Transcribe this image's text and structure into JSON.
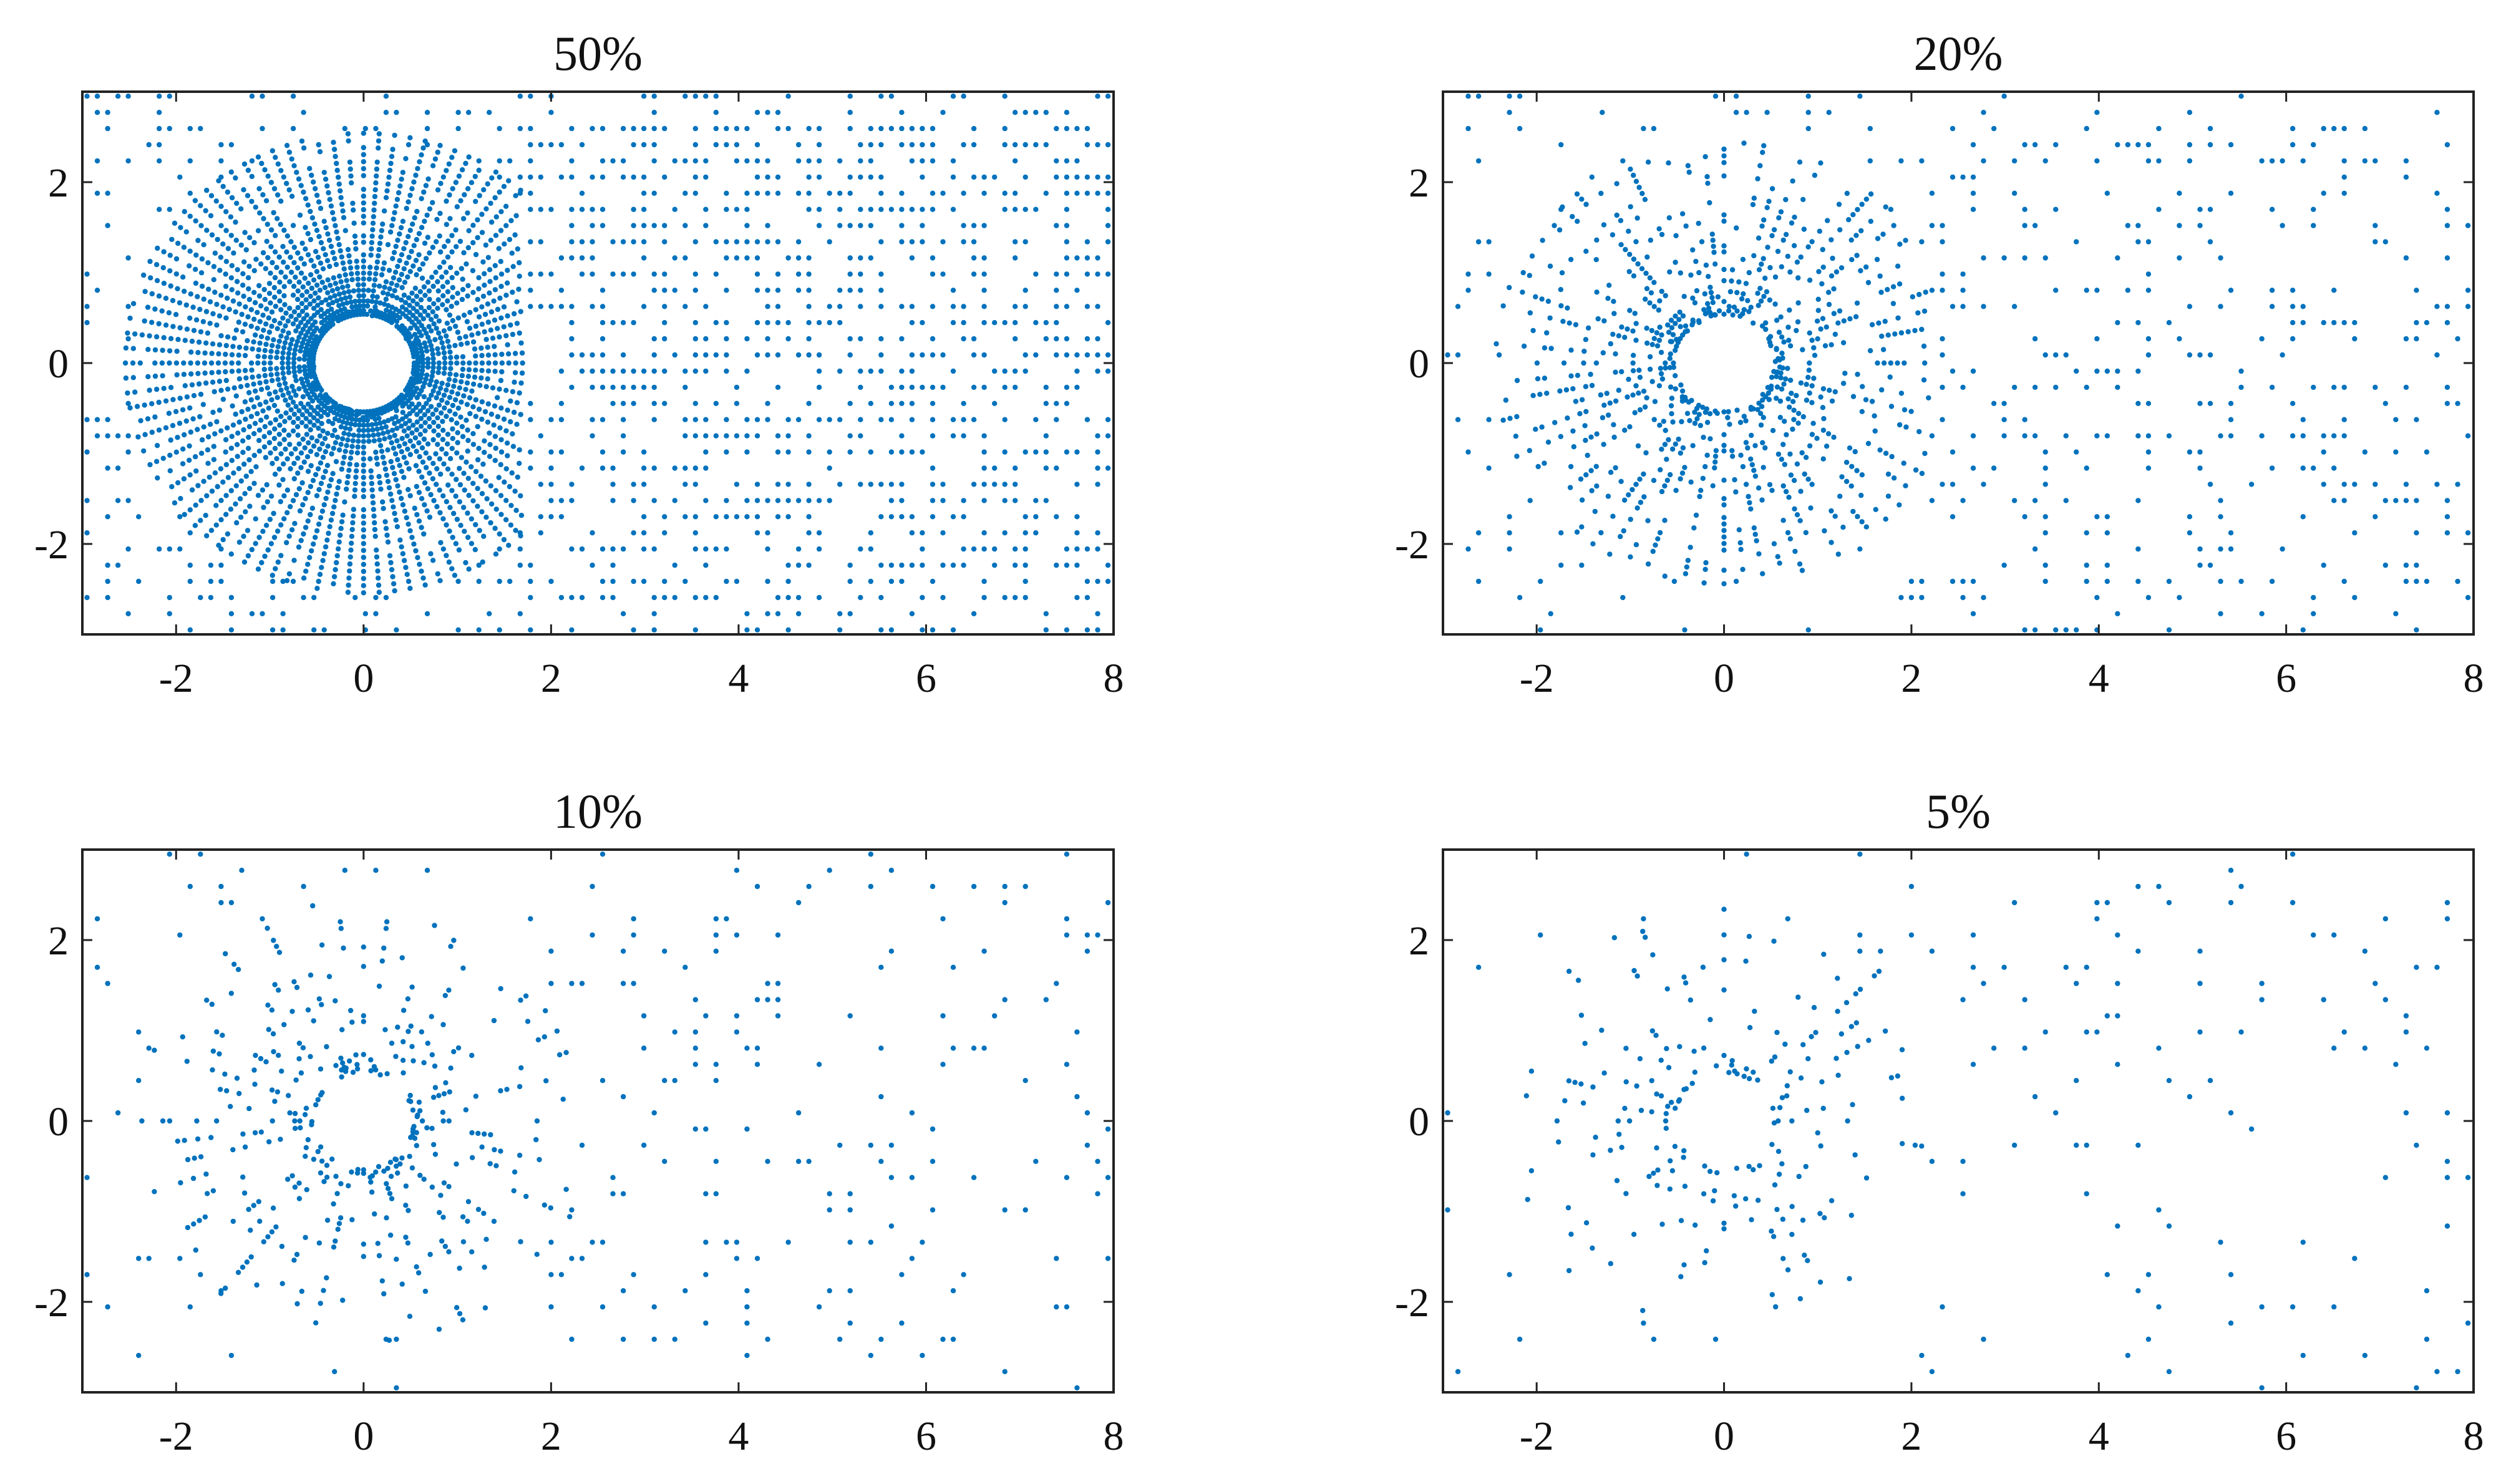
{
  "figure": {
    "point_color": "#0072BD",
    "axis_color": "#222222"
  },
  "chart_data": [
    {
      "type": "scatter",
      "title": "50%",
      "xlim": [
        -3,
        8
      ],
      "ylim": [
        -3,
        3
      ],
      "xticks": [
        -2,
        0,
        2,
        4,
        6,
        8
      ],
      "yticks": [
        -2,
        0,
        2
      ],
      "grid": false,
      "legend": "none",
      "series": [
        {
          "fraction": 0.5,
          "hole_radius": 0.5,
          "ray_count": 96,
          "ray_max_radius": 2.5,
          "wake_start_x": 1.7
        }
      ]
    },
    {
      "type": "scatter",
      "title": "20%",
      "xlim": [
        -3,
        8
      ],
      "ylim": [
        -3,
        3
      ],
      "xticks": [
        -2,
        0,
        2,
        4,
        6,
        8
      ],
      "yticks": [
        -2,
        0,
        2
      ],
      "grid": false,
      "legend": "none",
      "series": [
        {
          "fraction": 0.2,
          "hole_radius": 0.5,
          "ray_count": 72,
          "ray_max_radius": 2.4,
          "wake_start_x": 2.2
        }
      ]
    },
    {
      "type": "scatter",
      "title": "10%",
      "xlim": [
        -3,
        8
      ],
      "ylim": [
        -3,
        3
      ],
      "xticks": [
        -2,
        0,
        2,
        4,
        6,
        8
      ],
      "yticks": [
        -2,
        0,
        2
      ],
      "grid": false,
      "legend": "none",
      "series": [
        {
          "fraction": 0.1,
          "hole_radius": 0.5,
          "ray_count": 56,
          "ray_max_radius": 2.4,
          "wake_start_x": 2.2
        }
      ]
    },
    {
      "type": "scatter",
      "title": "5%",
      "xlim": [
        -3,
        8
      ],
      "ylim": [
        -3,
        3
      ],
      "xticks": [
        -2,
        0,
        2,
        4,
        6,
        8
      ],
      "yticks": [
        -2,
        0,
        2
      ],
      "grid": false,
      "legend": "none",
      "series": [
        {
          "fraction": 0.05,
          "hole_radius": 0.5,
          "ray_count": 48,
          "ray_max_radius": 2.3,
          "wake_start_x": 2.2
        }
      ]
    }
  ]
}
